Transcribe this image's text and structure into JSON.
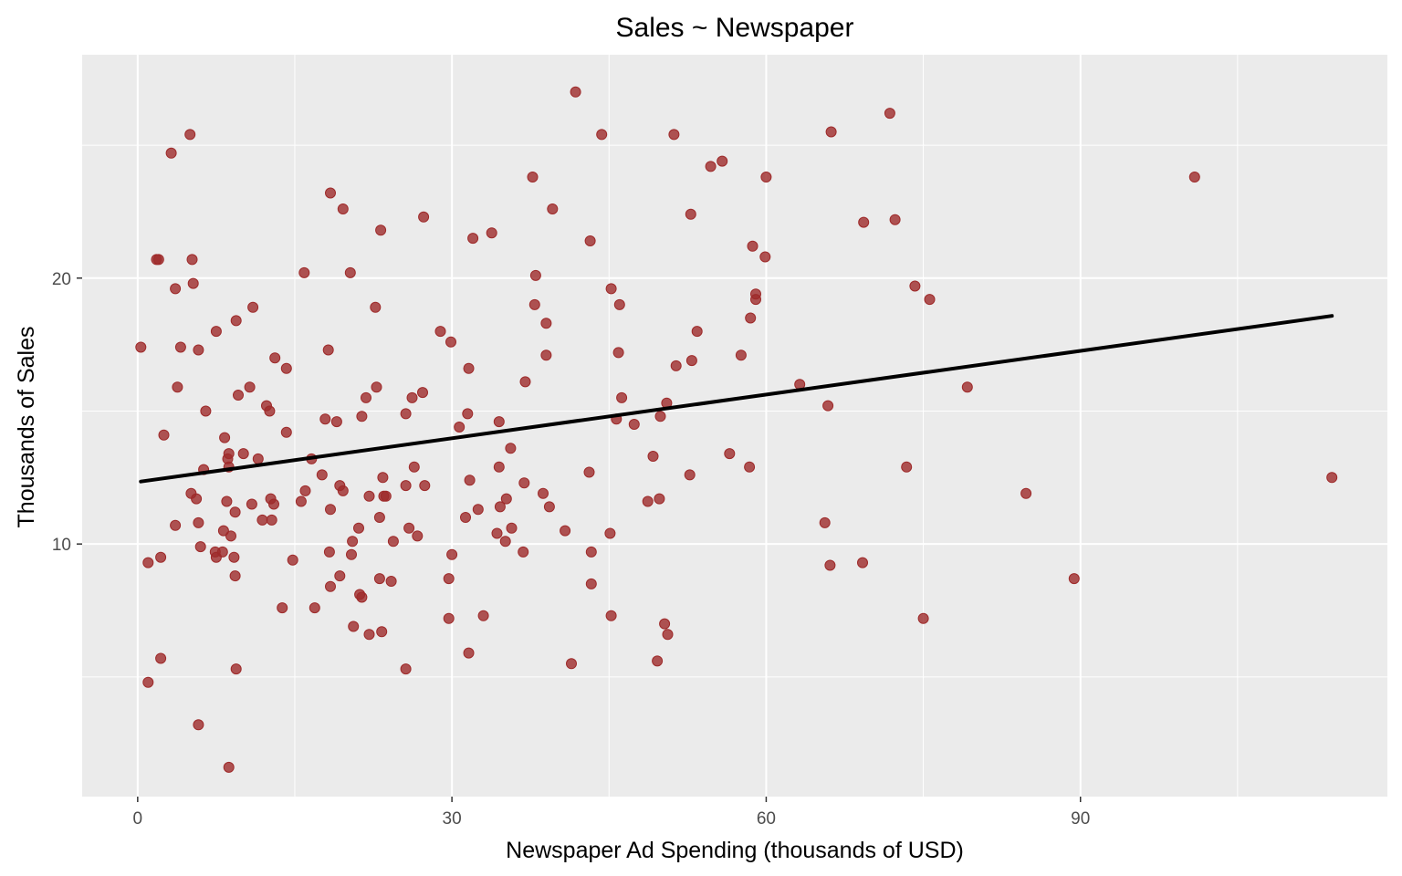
{
  "chart_data": {
    "type": "scatter",
    "title": "Sales ~ Newspaper",
    "xlabel": "Newspaper Ad Spending (thousands of USD)",
    "ylabel": "Thousands of Sales",
    "xlim": [
      -5.3,
      119.3
    ],
    "ylim": [
      0.5,
      28.4
    ],
    "x_ticks": [
      0,
      30,
      60,
      90
    ],
    "x_tick_labels": [
      "0",
      "30",
      "60",
      "90"
    ],
    "x_minor_ticks": [
      15,
      45,
      75,
      105
    ],
    "y_ticks": [
      10,
      20
    ],
    "y_tick_labels": [
      "10",
      "20"
    ],
    "y_minor_ticks": [
      5,
      15,
      25
    ],
    "grid": true,
    "background_color": "#EBEBEB",
    "point_color": "#9E2A2A",
    "line_color": "#000000",
    "regression_line": {
      "x": [
        0.3,
        114.0
      ],
      "y": [
        12.35,
        18.58
      ]
    },
    "points": [
      [
        0.3,
        17.4
      ],
      [
        1.0,
        9.3
      ],
      [
        1.0,
        4.8
      ],
      [
        1.8,
        20.7
      ],
      [
        2.0,
        20.7
      ],
      [
        2.2,
        5.7
      ],
      [
        2.2,
        9.5
      ],
      [
        2.5,
        14.1
      ],
      [
        3.2,
        24.7
      ],
      [
        3.6,
        19.6
      ],
      [
        3.6,
        10.7
      ],
      [
        3.8,
        15.9
      ],
      [
        4.1,
        17.4
      ],
      [
        5.0,
        25.4
      ],
      [
        5.1,
        11.9
      ],
      [
        5.2,
        20.7
      ],
      [
        5.3,
        19.8
      ],
      [
        5.6,
        11.7
      ],
      [
        5.8,
        10.8
      ],
      [
        5.8,
        17.3
      ],
      [
        5.8,
        3.2
      ],
      [
        6.0,
        9.9
      ],
      [
        6.3,
        12.8
      ],
      [
        6.5,
        15.0
      ],
      [
        7.4,
        9.7
      ],
      [
        7.5,
        9.5
      ],
      [
        7.5,
        18.0
      ],
      [
        8.1,
        9.7
      ],
      [
        8.2,
        10.5
      ],
      [
        8.3,
        14.0
      ],
      [
        8.5,
        11.6
      ],
      [
        8.6,
        13.2
      ],
      [
        8.7,
        12.9
      ],
      [
        8.7,
        13.4
      ],
      [
        8.7,
        1.6
      ],
      [
        8.9,
        10.3
      ],
      [
        9.2,
        9.5
      ],
      [
        9.3,
        8.8
      ],
      [
        9.3,
        11.2
      ],
      [
        9.4,
        18.4
      ],
      [
        9.4,
        5.3
      ],
      [
        9.6,
        15.6
      ],
      [
        10.1,
        13.4
      ],
      [
        10.7,
        15.9
      ],
      [
        10.9,
        11.5
      ],
      [
        11.0,
        18.9
      ],
      [
        11.5,
        13.2
      ],
      [
        11.9,
        10.9
      ],
      [
        12.3,
        15.2
      ],
      [
        12.6,
        15.0
      ],
      [
        12.7,
        11.7
      ],
      [
        12.8,
        10.9
      ],
      [
        13.0,
        11.5
      ],
      [
        13.1,
        17.0
      ],
      [
        13.8,
        7.6
      ],
      [
        14.2,
        14.2
      ],
      [
        14.2,
        16.6
      ],
      [
        14.8,
        9.4
      ],
      [
        15.6,
        11.6
      ],
      [
        15.9,
        20.2
      ],
      [
        16.0,
        12.0
      ],
      [
        16.6,
        13.2
      ],
      [
        16.9,
        7.6
      ],
      [
        17.6,
        12.6
      ],
      [
        17.9,
        14.7
      ],
      [
        18.2,
        17.3
      ],
      [
        18.3,
        9.7
      ],
      [
        18.4,
        11.3
      ],
      [
        18.4,
        8.4
      ],
      [
        18.4,
        23.2
      ],
      [
        19.0,
        14.6
      ],
      [
        19.3,
        8.8
      ],
      [
        19.3,
        12.2
      ],
      [
        19.6,
        12.0
      ],
      [
        19.6,
        22.6
      ],
      [
        20.3,
        20.2
      ],
      [
        20.4,
        9.6
      ],
      [
        20.5,
        10.1
      ],
      [
        20.6,
        6.9
      ],
      [
        21.1,
        10.6
      ],
      [
        21.2,
        8.1
      ],
      [
        21.4,
        14.8
      ],
      [
        21.4,
        8.0
      ],
      [
        21.8,
        15.5
      ],
      [
        22.1,
        6.6
      ],
      [
        22.1,
        11.8
      ],
      [
        22.7,
        18.9
      ],
      [
        22.8,
        15.9
      ],
      [
        23.1,
        8.7
      ],
      [
        23.1,
        11.0
      ],
      [
        23.2,
        21.8
      ],
      [
        23.3,
        6.7
      ],
      [
        23.4,
        12.5
      ],
      [
        23.5,
        11.8
      ],
      [
        23.7,
        11.8
      ],
      [
        24.2,
        8.6
      ],
      [
        24.4,
        10.1
      ],
      [
        25.6,
        14.9
      ],
      [
        25.6,
        12.2
      ],
      [
        25.6,
        5.3
      ],
      [
        25.9,
        10.6
      ],
      [
        26.2,
        15.5
      ],
      [
        26.4,
        12.9
      ],
      [
        26.7,
        10.3
      ],
      [
        27.2,
        15.7
      ],
      [
        27.3,
        22.3
      ],
      [
        27.4,
        12.2
      ],
      [
        28.9,
        18.0
      ],
      [
        29.7,
        8.7
      ],
      [
        29.7,
        7.2
      ],
      [
        29.9,
        17.6
      ],
      [
        30.0,
        9.6
      ],
      [
        30.7,
        14.4
      ],
      [
        31.3,
        11.0
      ],
      [
        31.5,
        14.9
      ],
      [
        31.6,
        16.6
      ],
      [
        31.6,
        5.9
      ],
      [
        31.7,
        12.4
      ],
      [
        32.0,
        21.5
      ],
      [
        32.5,
        11.3
      ],
      [
        33.0,
        7.3
      ],
      [
        33.8,
        21.7
      ],
      [
        34.3,
        10.4
      ],
      [
        34.5,
        14.6
      ],
      [
        34.5,
        12.9
      ],
      [
        34.6,
        11.4
      ],
      [
        35.1,
        10.1
      ],
      [
        35.2,
        11.7
      ],
      [
        35.6,
        13.6
      ],
      [
        35.7,
        10.6
      ],
      [
        36.8,
        9.7
      ],
      [
        36.9,
        12.3
      ],
      [
        37.0,
        16.1
      ],
      [
        37.7,
        23.8
      ],
      [
        37.9,
        19.0
      ],
      [
        38.0,
        20.1
      ],
      [
        38.7,
        11.9
      ],
      [
        39.0,
        18.3
      ],
      [
        39.0,
        17.1
      ],
      [
        39.3,
        11.4
      ],
      [
        39.6,
        22.6
      ],
      [
        40.8,
        10.5
      ],
      [
        41.4,
        5.5
      ],
      [
        41.8,
        27.0
      ],
      [
        43.1,
        12.7
      ],
      [
        43.2,
        21.4
      ],
      [
        43.3,
        9.7
      ],
      [
        43.3,
        8.5
      ],
      [
        44.3,
        25.4
      ],
      [
        45.1,
        10.4
      ],
      [
        45.2,
        19.6
      ],
      [
        45.2,
        7.3
      ],
      [
        45.7,
        14.7
      ],
      [
        45.9,
        17.2
      ],
      [
        46.0,
        19.0
      ],
      [
        46.2,
        15.5
      ],
      [
        47.4,
        14.5
      ],
      [
        48.7,
        11.6
      ],
      [
        49.2,
        13.3
      ],
      [
        49.6,
        5.6
      ],
      [
        49.8,
        11.7
      ],
      [
        49.9,
        14.8
      ],
      [
        50.3,
        7.0
      ],
      [
        50.5,
        15.3
      ],
      [
        50.6,
        6.6
      ],
      [
        51.2,
        25.4
      ],
      [
        51.4,
        16.7
      ],
      [
        52.7,
        12.6
      ],
      [
        52.8,
        22.4
      ],
      [
        52.9,
        16.9
      ],
      [
        53.4,
        18.0
      ],
      [
        54.7,
        24.2
      ],
      [
        55.8,
        24.4
      ],
      [
        56.5,
        13.4
      ],
      [
        57.6,
        17.1
      ],
      [
        58.4,
        12.9
      ],
      [
        58.5,
        18.5
      ],
      [
        58.7,
        21.2
      ],
      [
        59.0,
        19.2
      ],
      [
        59.0,
        19.4
      ],
      [
        59.9,
        20.8
      ],
      [
        60.0,
        23.8
      ],
      [
        63.2,
        16.0
      ],
      [
        65.6,
        10.8
      ],
      [
        65.9,
        15.2
      ],
      [
        66.1,
        9.2
      ],
      [
        66.2,
        25.5
      ],
      [
        69.2,
        9.3
      ],
      [
        69.3,
        22.1
      ],
      [
        71.8,
        26.2
      ],
      [
        72.3,
        22.2
      ],
      [
        73.4,
        12.9
      ],
      [
        74.2,
        19.7
      ],
      [
        75.0,
        7.2
      ],
      [
        75.6,
        19.2
      ],
      [
        79.2,
        15.9
      ],
      [
        84.8,
        11.9
      ],
      [
        89.4,
        8.7
      ],
      [
        100.9,
        23.8
      ],
      [
        114.0,
        12.5
      ]
    ]
  }
}
